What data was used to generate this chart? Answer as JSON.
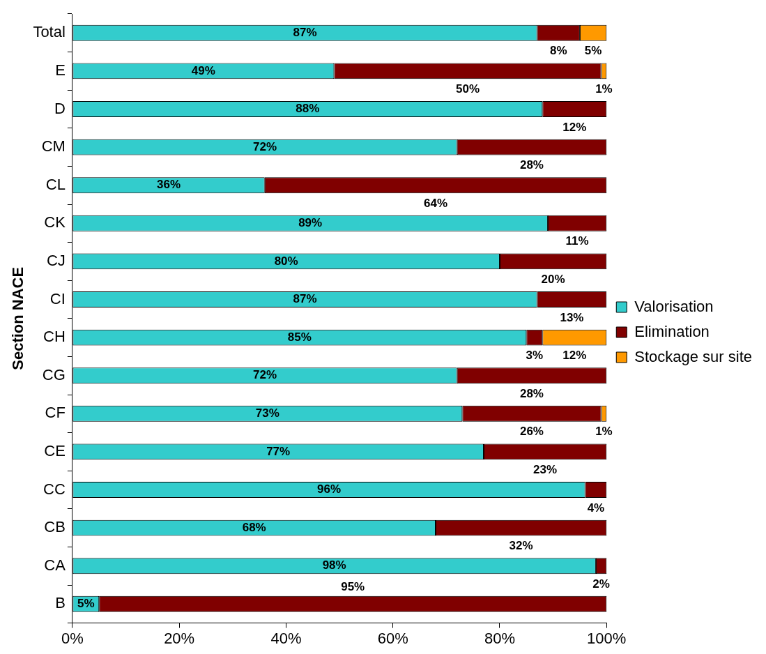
{
  "chart_data": {
    "type": "bar",
    "orientation": "horizontal",
    "stacked": true,
    "ylabel": "Section NACE",
    "categories": [
      "Total",
      "E",
      "D",
      "CM",
      "CL",
      "CK",
      "CJ",
      "CI",
      "CH",
      "CG",
      "CF",
      "CE",
      "CC",
      "CB",
      "CA",
      "B"
    ],
    "series": [
      {
        "name": "Valorisation",
        "color": "#33cccc",
        "values": [
          87,
          49,
          88,
          72,
          36,
          89,
          80,
          87,
          85,
          72,
          73,
          77,
          96,
          68,
          98,
          5
        ],
        "value_labels": [
          "87%",
          "49%",
          "88%",
          "72%",
          "36%",
          "89%",
          "80%",
          "87%",
          "85%",
          "72%",
          "73%",
          "77%",
          "96%",
          "68%",
          "98%",
          "5%"
        ]
      },
      {
        "name": "Elimination",
        "color": "#800000",
        "values": [
          8,
          50,
          12,
          28,
          64,
          11,
          20,
          13,
          3,
          28,
          26,
          23,
          4,
          32,
          2,
          95
        ],
        "value_labels": [
          "8%",
          "50%",
          "12%",
          "28%",
          "64%",
          "11%",
          "20%",
          "13%",
          "3%",
          "28%",
          "26%",
          "23%",
          "4%",
          "32%",
          "2%",
          "95%"
        ]
      },
      {
        "name": "Stockage sur site",
        "color": "#ff9900",
        "values": [
          5,
          1,
          null,
          null,
          null,
          null,
          null,
          null,
          12,
          null,
          1,
          null,
          null,
          null,
          null,
          null
        ],
        "value_labels": [
          "5%",
          "1%",
          null,
          null,
          null,
          null,
          null,
          null,
          "12%",
          null,
          "1%",
          null,
          null,
          null,
          null,
          null
        ]
      }
    ],
    "xlim": [
      0,
      100
    ],
    "xticks": [
      {
        "value": 0,
        "label": "0%"
      },
      {
        "value": 20,
        "label": "20%"
      },
      {
        "value": 40,
        "label": "40%"
      },
      {
        "value": 60,
        "label": "60%"
      },
      {
        "value": 80,
        "label": "80%"
      },
      {
        "value": 100,
        "label": "100%"
      }
    ],
    "legend": "right"
  }
}
